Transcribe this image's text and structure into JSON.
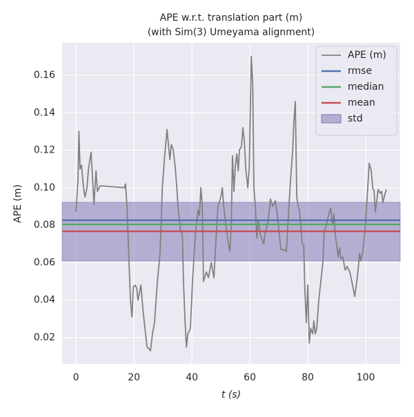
{
  "chart_data": {
    "type": "line",
    "title": "APE w.r.t. translation part (m)",
    "subtitle": "(with Sim(3) Umeyama alignment)",
    "x_label": "t (s)",
    "y_label": "APE (m)",
    "xlim": [
      -4.8,
      111.9
    ],
    "ylim": [
      0.006,
      0.1773
    ],
    "xticks": [
      0,
      20,
      40,
      60,
      80,
      100
    ],
    "yticks": [
      0.02,
      0.04,
      0.06,
      0.08,
      {
        "value": 0.1,
        "label": "0.10"
      },
      0.12,
      0.14,
      0.16
    ],
    "grid": true,
    "legend": "upper right",
    "x": [
      0,
      0.7,
      1.0,
      1.4,
      1.9,
      2.6,
      3.1,
      3.8,
      4.3,
      5.2,
      5.7,
      6.2,
      6.9,
      7.4,
      8.3,
      16.7,
      17.1,
      17.6,
      18.3,
      18.8,
      19.3,
      19.8,
      20.5,
      21.0,
      21.4,
      22.4,
      23.1,
      23.8,
      24.5,
      25.2,
      25.7,
      26.4,
      27.1,
      28.1,
      29.0,
      29.8,
      30.5,
      31.4,
      32.4,
      32.9,
      33.6,
      34.3,
      34.8,
      35.2,
      36.0,
      36.7,
      37.1,
      37.6,
      38.1,
      38.6,
      39.5,
      40.2,
      41.2,
      42.1,
      42.6,
      43.1,
      43.6,
      44.0,
      45.0,
      45.7,
      46.7,
      47.6,
      48.6,
      49.0,
      50.0,
      50.5,
      51.0,
      51.7,
      52.4,
      53.1,
      53.6,
      54.0,
      54.5,
      55.0,
      55.5,
      56.0,
      56.4,
      57.1,
      57.6,
      58.1,
      58.6,
      59.3,
      59.8,
      60.5,
      61.0,
      61.4,
      61.9,
      62.4,
      62.9,
      63.6,
      64.3,
      64.8,
      65.2,
      66.0,
      66.4,
      67.1,
      67.9,
      68.8,
      69.3,
      70.2,
      70.7,
      71.7,
      72.6,
      73.3,
      74.0,
      74.8,
      75.2,
      75.7,
      76.2,
      76.7,
      77.1,
      77.6,
      78.1,
      78.6,
      79.0,
      79.5,
      80.0,
      80.5,
      81.0,
      81.7,
      82.1,
      82.6,
      83.1,
      83.8,
      84.5,
      85.2,
      85.7,
      86.4,
      87.1,
      87.9,
      88.6,
      89.0,
      89.5,
      90.5,
      91.0,
      91.4,
      92.1,
      92.9,
      93.6,
      94.5,
      95.2,
      96.2,
      97.1,
      97.9,
      98.3,
      99.0,
      99.8,
      100.7,
      101.2,
      101.9,
      102.4,
      102.9,
      103.3,
      103.8,
      104.3,
      105.0,
      105.5,
      105.9,
      106.7,
      107.1
    ],
    "series": [
      {
        "name": "APE (m)",
        "color": "#808080",
        "values": [
          0.087,
          0.105,
          0.13,
          0.11,
          0.112,
          0.1,
          0.095,
          0.1,
          0.11,
          0.119,
          0.105,
          0.091,
          0.109,
          0.098,
          0.101,
          0.1,
          0.102,
          0.09,
          0.06,
          0.04,
          0.031,
          0.047,
          0.048,
          0.046,
          0.04,
          0.048,
          0.035,
          0.025,
          0.015,
          0.014,
          0.013,
          0.022,
          0.028,
          0.05,
          0.065,
          0.1,
          0.115,
          0.131,
          0.115,
          0.123,
          0.12,
          0.11,
          0.1,
          0.09,
          0.078,
          0.075,
          0.05,
          0.03,
          0.015,
          0.022,
          0.025,
          0.05,
          0.075,
          0.088,
          0.085,
          0.1,
          0.09,
          0.05,
          0.055,
          0.052,
          0.06,
          0.052,
          0.08,
          0.09,
          0.095,
          0.1,
          0.09,
          0.08,
          0.072,
          0.066,
          0.08,
          0.117,
          0.098,
          0.112,
          0.118,
          0.109,
          0.12,
          0.122,
          0.132,
          0.125,
          0.11,
          0.1,
          0.11,
          0.17,
          0.155,
          0.1,
          0.09,
          0.073,
          0.083,
          0.075,
          0.072,
          0.07,
          0.075,
          0.08,
          0.083,
          0.094,
          0.09,
          0.093,
          0.088,
          0.075,
          0.067,
          0.067,
          0.066,
          0.085,
          0.103,
          0.12,
          0.135,
          0.146,
          0.095,
          0.09,
          0.088,
          0.08,
          0.07,
          0.069,
          0.045,
          0.028,
          0.048,
          0.017,
          0.025,
          0.022,
          0.029,
          0.022,
          0.025,
          0.04,
          0.05,
          0.06,
          0.077,
          0.08,
          0.085,
          0.089,
          0.08,
          0.086,
          0.075,
          0.063,
          0.068,
          0.062,
          0.063,
          0.056,
          0.058,
          0.055,
          0.05,
          0.042,
          0.052,
          0.065,
          0.061,
          0.066,
          0.078,
          0.1,
          0.113,
          0.109,
          0.1,
          0.098,
          0.087,
          0.093,
          0.099,
          0.097,
          0.098,
          0.092,
          0.097,
          0.099
        ]
      }
    ],
    "reference_lines": [
      {
        "name": "rmse",
        "color": "#4c72b0",
        "value": 0.0826
      },
      {
        "name": "median",
        "color": "#55a868",
        "value": 0.0804
      },
      {
        "name": "mean",
        "color": "#c44e52",
        "value": 0.0767
      }
    ],
    "band": {
      "name": "std",
      "color": "#8172b2",
      "low": 0.0609,
      "high": 0.0922
    }
  }
}
